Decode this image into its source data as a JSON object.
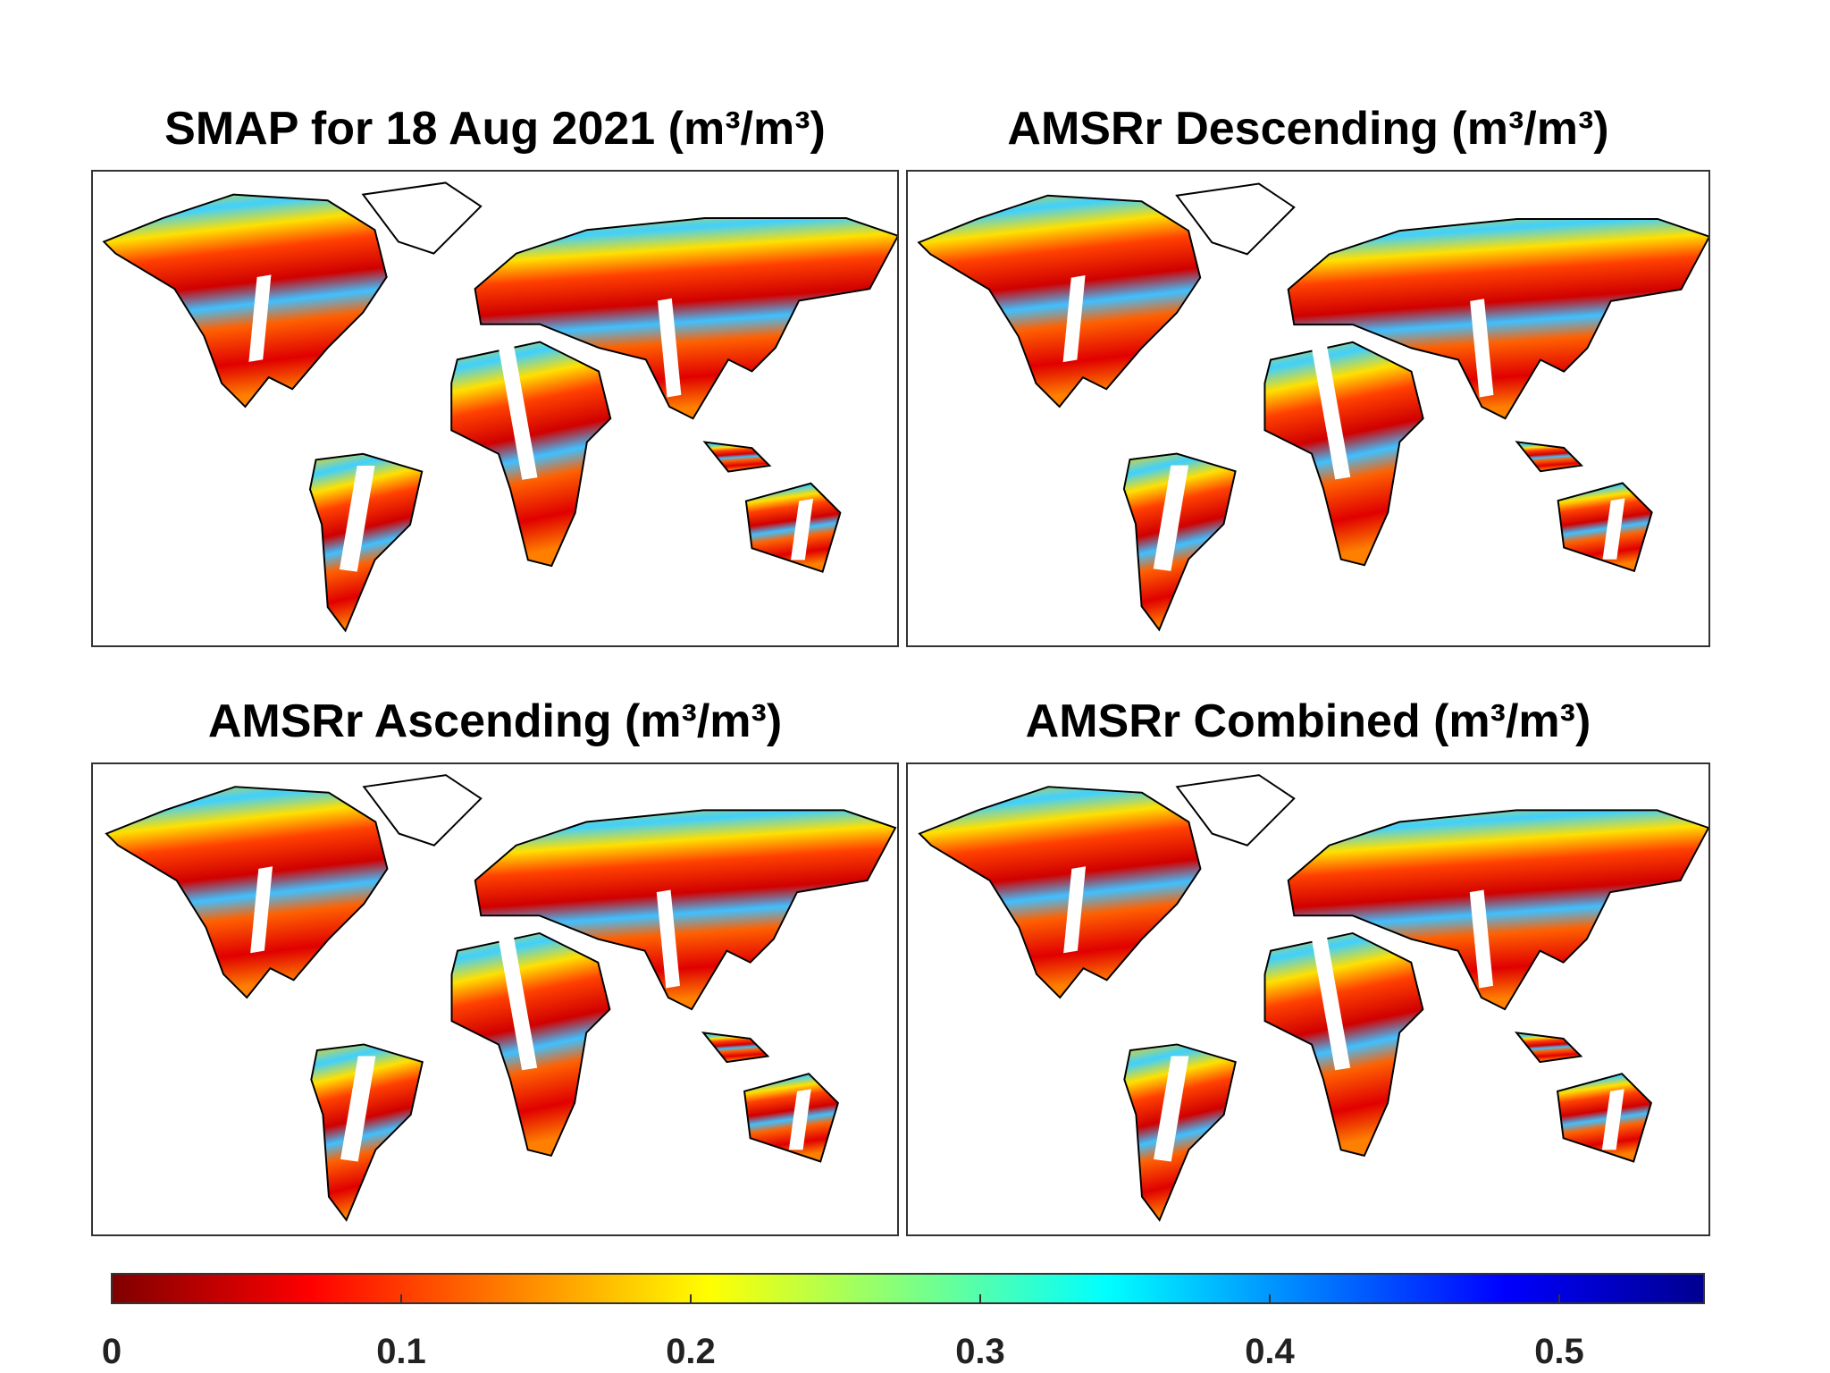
{
  "panels": [
    {
      "title": "SMAP for 18 Aug 2021 (m³/m³)"
    },
    {
      "title": "AMSRr Descending (m³/m³)"
    },
    {
      "title": "AMSRr Ascending (m³/m³)"
    },
    {
      "title": "AMSRr Combined (m³/m³)"
    }
  ],
  "colorbar": {
    "colormap": [
      "#800000",
      "#ff0000",
      "#ff8000",
      "#ffff00",
      "#80ff80",
      "#00ffff",
      "#0080ff",
      "#0000ff",
      "#00008f"
    ],
    "clim": [
      0,
      0.55
    ],
    "ticks": [
      0,
      0.1,
      0.2,
      0.3,
      0.4,
      0.5
    ]
  }
}
